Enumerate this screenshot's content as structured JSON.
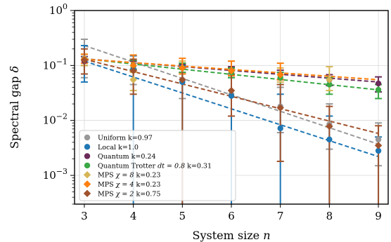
{
  "chart_data": {
    "type": "scatter",
    "xlabel": "System size $n$",
    "ylabel": "Spectral gap $\\delta$",
    "x_ticks": [
      "3",
      "4",
      "5",
      "6",
      "7",
      "8",
      "9"
    ],
    "y_ticks": [
      {
        "base": "10",
        "exp": "0",
        "value": 1
      },
      {
        "base": "10",
        "exp": "−1",
        "value": 0.1
      },
      {
        "base": "10",
        "exp": "−2",
        "value": 0.01
      },
      {
        "base": "10",
        "exp": "−3",
        "value": 0.001
      }
    ],
    "xlim": [
      2.8,
      9.2
    ],
    "ylim": [
      0.0003,
      1.0
    ],
    "y_scale": "log",
    "grid": true,
    "legend_position": "bottom-left",
    "series": [
      {
        "name": "Uniform k=0.97",
        "color": "#999999",
        "marker": "circle",
        "x": [
          3,
          4,
          5,
          6,
          7,
          8,
          9
        ],
        "y": [
          0.135,
          0.09,
          0.055,
          0.03,
          0.018,
          0.0085,
          0.0045
        ],
        "err_low": [
          0.06,
          0.045,
          0.025,
          0.012,
          0.006,
          0.003,
          0.0015
        ],
        "err_high": [
          0.3,
          0.15,
          0.11,
          0.065,
          0.04,
          0.02,
          0.009
        ],
        "fit": [
          0.23,
          0.0037
        ]
      },
      {
        "name": "Local k=1.0",
        "color": "#1f77b4",
        "marker": "circle",
        "x": [
          3,
          4,
          5,
          6,
          7,
          8,
          9
        ],
        "y": [
          0.13,
          0.085,
          0.05,
          0.028,
          0.0072,
          0.0045,
          0.0028
        ],
        "err_low": [
          0.05,
          0.0003,
          0.0003,
          0.0003,
          0.0003,
          0.0003,
          0.0003
        ],
        "err_high": [
          0.23,
          0.15,
          0.1,
          0.06,
          0.03,
          0.012,
          0.005
        ],
        "fit": [
          0.12,
          0.0022
        ]
      },
      {
        "name": "Quantum k=0.24",
        "color": "#6b2a5a",
        "marker": "circle",
        "x": [
          3,
          4,
          5,
          6,
          7,
          8,
          9
        ],
        "y": [
          0.12,
          0.1,
          0.09,
          0.08,
          0.068,
          0.055,
          0.047
        ],
        "err_low": [
          0.1,
          0.085,
          0.075,
          0.065,
          0.055,
          0.043,
          0.033
        ],
        "err_high": [
          0.145,
          0.12,
          0.105,
          0.095,
          0.082,
          0.068,
          0.062
        ],
        "fit": [
          0.132,
          0.05
        ]
      },
      {
        "name": "Quantum Trotter $dt=0.8$ k=0.31",
        "color": "#3aa845",
        "marker": "circle",
        "x": [
          3,
          4,
          5,
          6,
          7,
          8,
          9
        ],
        "y": [
          0.13,
          0.1,
          0.09,
          0.075,
          0.06,
          0.045,
          0.036
        ],
        "err_low": [
          0.1,
          0.085,
          0.075,
          0.06,
          0.045,
          0.03,
          0.025
        ],
        "err_high": [
          0.16,
          0.125,
          0.11,
          0.09,
          0.075,
          0.06,
          0.045
        ],
        "fit": [
          0.132,
          0.036
        ]
      },
      {
        "name": "MPS $\\chi=8$ k=0.23",
        "color": "#d6b656",
        "marker": "diamond",
        "x": [
          3,
          4,
          5,
          6,
          7,
          8
        ],
        "y": [
          0.13,
          0.055,
          0.09,
          0.08,
          0.068,
          0.055
        ],
        "err_low": [
          0.1,
          0.035,
          0.07,
          0.065,
          0.05,
          0.035
        ],
        "err_high": [
          0.16,
          0.075,
          0.12,
          0.12,
          0.09,
          0.095
        ],
        "fit": [
          0.13,
          0.055
        ]
      },
      {
        "name": "MPS $\\chi=4$ k=0.23",
        "color": "#ff7f0e",
        "marker": "diamond",
        "x": [
          3,
          4,
          5,
          6,
          7
        ],
        "y": [
          0.13,
          0.1,
          0.09,
          0.08,
          0.068
        ],
        "err_low": [
          0.11,
          0.08,
          0.07,
          0.065,
          0.055
        ],
        "err_high": [
          0.16,
          0.155,
          0.135,
          0.12,
          0.11
        ],
        "fit": [
          0.13,
          0.055
        ]
      },
      {
        "name": "MPS $\\chi=2$ k=0.75",
        "color": "#a0522d",
        "marker": "diamond",
        "x": [
          3,
          4,
          5,
          6,
          7,
          8,
          9
        ],
        "y": [
          0.125,
          0.08,
          0.055,
          0.035,
          0.017,
          0.0078,
          0.0035
        ],
        "err_low": [
          0.07,
          0.03,
          0.0003,
          0.012,
          0.0018,
          0.0003,
          0.0003
        ],
        "err_high": [
          0.2,
          0.13,
          0.09,
          0.07,
          0.045,
          0.018,
          0.008
        ],
        "fit": [
          0.13,
          0.0058
        ]
      }
    ]
  }
}
